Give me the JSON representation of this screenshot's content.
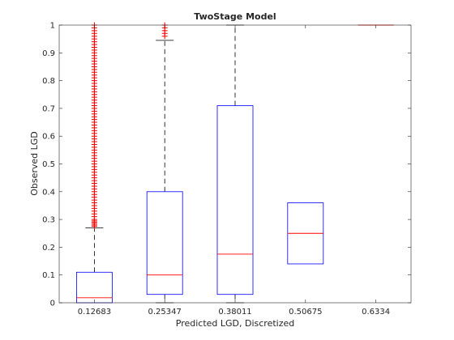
{
  "chart_data": {
    "type": "box",
    "title": "TwoStage Model",
    "xlabel": "Predicted LGD, Discretized",
    "ylabel": "Observed LGD",
    "ylim": [
      0,
      1
    ],
    "yticks": [
      0,
      0.1,
      0.2,
      0.3,
      0.4,
      0.5,
      0.6,
      0.7,
      0.8,
      0.9,
      1
    ],
    "ytick_labels": [
      "0",
      "0.1",
      "0.2",
      "0.3",
      "0.4",
      "0.5",
      "0.6",
      "0.7",
      "0.8",
      "0.9",
      "1"
    ],
    "categories": [
      "0.12683",
      "0.25347",
      "0.38011",
      "0.50675",
      "0.6334"
    ],
    "grid": false,
    "colors": {
      "box": "#0000ff",
      "median": "#ff0000",
      "outlier": "#ff0000",
      "whisker": "#000000",
      "axis": "#262626"
    },
    "boxes": [
      {
        "category": "0.12683",
        "min": 0,
        "q1": 0,
        "median": 0.018,
        "q3": 0.11,
        "max": 0.27,
        "outliers": [
          0.275,
          0.28,
          0.285,
          0.29,
          0.295,
          0.3,
          0.31,
          0.32,
          0.33,
          0.34,
          0.35,
          0.36,
          0.37,
          0.38,
          0.39,
          0.4,
          0.41,
          0.42,
          0.43,
          0.44,
          0.45,
          0.46,
          0.47,
          0.48,
          0.49,
          0.5,
          0.51,
          0.52,
          0.53,
          0.54,
          0.55,
          0.56,
          0.57,
          0.58,
          0.59,
          0.6,
          0.61,
          0.62,
          0.63,
          0.64,
          0.65,
          0.66,
          0.67,
          0.68,
          0.69,
          0.7,
          0.71,
          0.72,
          0.73,
          0.74,
          0.75,
          0.76,
          0.77,
          0.78,
          0.79,
          0.8,
          0.81,
          0.82,
          0.83,
          0.84,
          0.85,
          0.86,
          0.87,
          0.88,
          0.89,
          0.9,
          0.91,
          0.92,
          0.93,
          0.94,
          0.95,
          0.96,
          0.97,
          0.98,
          0.99,
          1.0
        ]
      },
      {
        "category": "0.25347",
        "min": 0,
        "q1": 0.03,
        "median": 0.1,
        "q3": 0.4,
        "max": 0.945,
        "outliers": [
          0.96,
          0.97,
          0.98,
          0.99,
          1.0
        ]
      },
      {
        "category": "0.38011",
        "min": 0,
        "q1": 0.03,
        "median": 0.175,
        "q3": 0.71,
        "max": 1.0,
        "outliers": []
      },
      {
        "category": "0.50675",
        "min": 0.14,
        "q1": 0.14,
        "median": 0.25,
        "q3": 0.36,
        "max": 0.36,
        "outliers": []
      },
      {
        "category": "0.6334",
        "min": 1.0,
        "q1": 1.0,
        "median": 1.0,
        "q3": 1.0,
        "max": 1.0,
        "outliers": []
      }
    ]
  }
}
